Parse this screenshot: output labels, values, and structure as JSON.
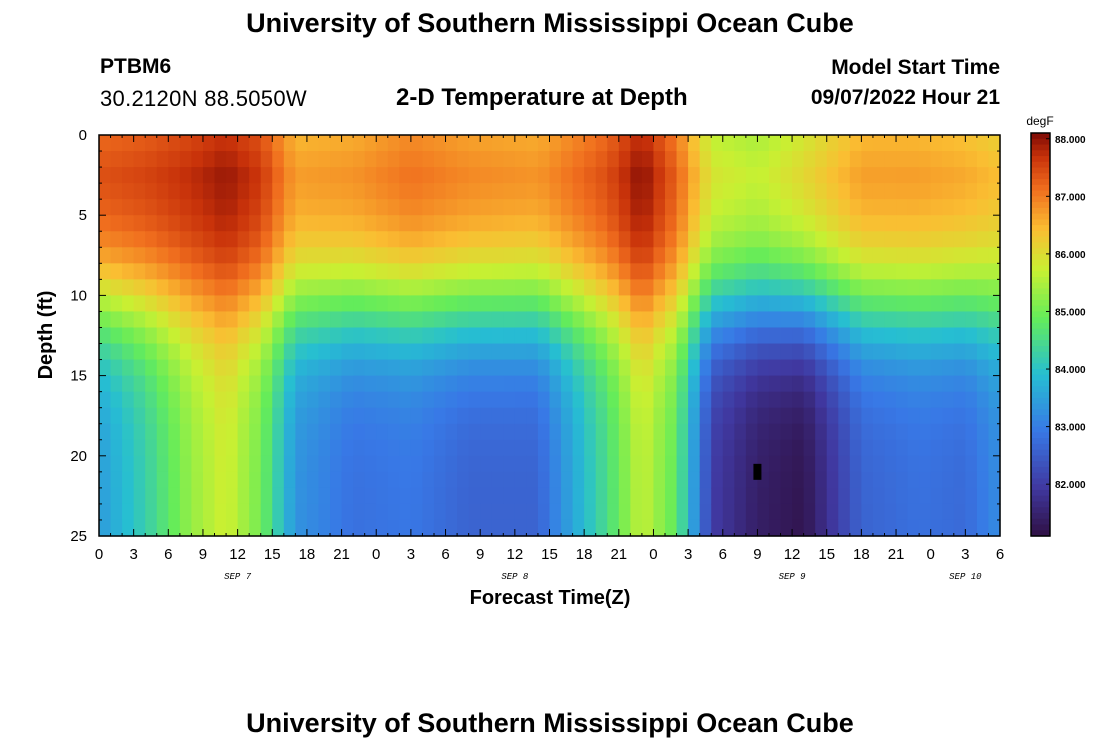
{
  "header": {
    "title": "University of Southern Mississippi Ocean Cube",
    "station_id": "PTBM6",
    "coordinates": "30.2120N  88.5050W",
    "plot_title": "2-D Temperature at Depth",
    "model_start_label": "Model Start Time",
    "model_start_time": "09/07/2022 Hour 21"
  },
  "footer": {
    "title": "University of Southern Mississippi Ocean Cube"
  },
  "chart_data": {
    "type": "heatmap",
    "title": "2-D Temperature at Depth",
    "xlabel": "Forecast Time(Z)",
    "ylabel": "Depth (ft)",
    "x_range_hours": [
      0,
      78
    ],
    "x_tick_labels": [
      "0",
      "3",
      "6",
      "9",
      "12",
      "15",
      "18",
      "21",
      "0",
      "3",
      "6",
      "9",
      "12",
      "15",
      "18",
      "21",
      "0",
      "3",
      "6",
      "9",
      "12",
      "15",
      "18",
      "21",
      "0",
      "3",
      "6"
    ],
    "x_date_labels": [
      {
        "label": "SEP 7",
        "hour": 12
      },
      {
        "label": "SEP 8",
        "hour": 36
      },
      {
        "label": "SEP 9",
        "hour": 60
      },
      {
        "label": "SEP 10",
        "hour": 75
      }
    ],
    "y_range_ft": [
      0,
      25
    ],
    "y_tick_labels": [
      "0",
      "5",
      "10",
      "15",
      "20",
      "25"
    ],
    "colorbar": {
      "unit": "degF",
      "min": 81.1,
      "max": 88.1,
      "tick_labels": [
        "88.000",
        "87.000",
        "86.000",
        "85.000",
        "84.000",
        "83.000",
        "82.000"
      ]
    },
    "marker": {
      "hour": 57,
      "depth_ft": 21
    },
    "surface_temps_degF": [
      {
        "hour": 0,
        "surface": 87.5,
        "bottom": 83.4
      },
      {
        "hour": 4,
        "surface": 87.6,
        "bottom": 84.2
      },
      {
        "hour": 8,
        "surface": 87.8,
        "bottom": 85.3
      },
      {
        "hour": 11,
        "surface": 88.0,
        "bottom": 85.8
      },
      {
        "hour": 14,
        "surface": 87.7,
        "bottom": 85.0
      },
      {
        "hour": 17,
        "surface": 86.8,
        "bottom": 83.3
      },
      {
        "hour": 22,
        "surface": 86.9,
        "bottom": 82.8
      },
      {
        "hour": 27,
        "surface": 87.2,
        "bottom": 82.9
      },
      {
        "hour": 32,
        "surface": 87.0,
        "bottom": 82.6
      },
      {
        "hour": 38,
        "surface": 86.9,
        "bottom": 82.6
      },
      {
        "hour": 44,
        "surface": 87.5,
        "bottom": 84.5
      },
      {
        "hour": 47,
        "surface": 88.1,
        "bottom": 85.7
      },
      {
        "hour": 50,
        "surface": 87.3,
        "bottom": 84.8
      },
      {
        "hour": 53,
        "surface": 86.0,
        "bottom": 82.0
      },
      {
        "hour": 57,
        "surface": 85.8,
        "bottom": 81.4
      },
      {
        "hour": 61,
        "surface": 86.2,
        "bottom": 81.2
      },
      {
        "hour": 66,
        "surface": 86.8,
        "bottom": 82.6
      },
      {
        "hour": 71,
        "surface": 86.8,
        "bottom": 82.8
      },
      {
        "hour": 75,
        "surface": 86.7,
        "bottom": 82.7
      },
      {
        "hour": 78,
        "surface": 86.5,
        "bottom": 83.2
      }
    ]
  }
}
